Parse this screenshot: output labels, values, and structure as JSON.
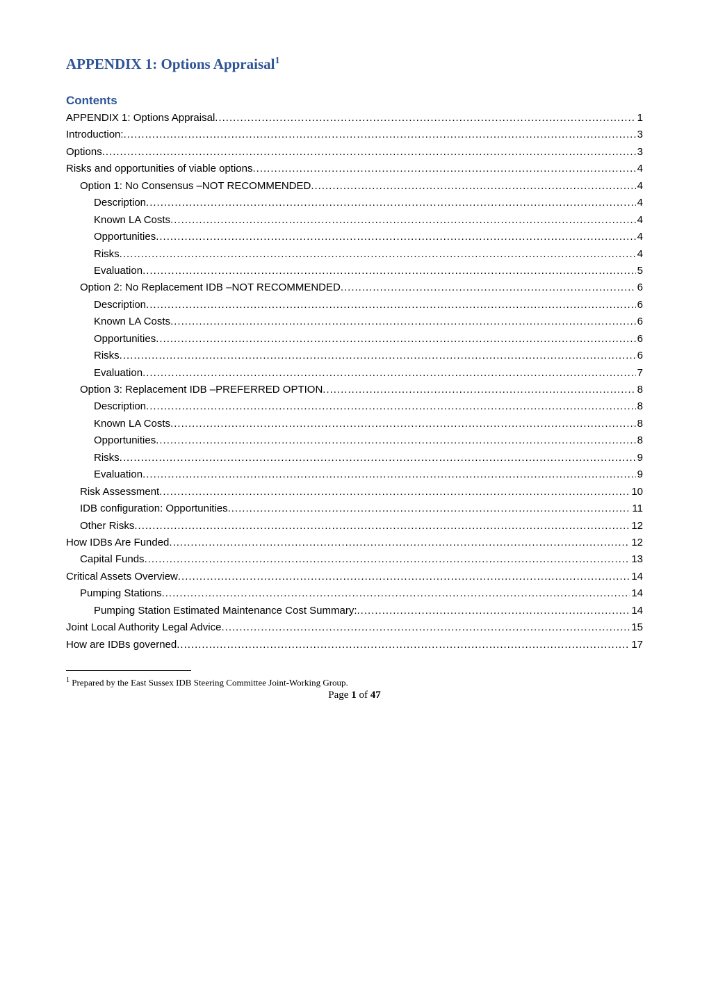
{
  "title": {
    "text": "APPENDIX 1: Options Appraisal",
    "footnote_marker": "1",
    "color": "#2e5496"
  },
  "contents_heading": "Contents",
  "toc": [
    {
      "label": "APPENDIX 1: Options Appraisal",
      "page": "1",
      "level": 0
    },
    {
      "label": "Introduction: ",
      "page": "3",
      "level": 0
    },
    {
      "label": "Options ",
      "page": "3",
      "level": 0
    },
    {
      "label": "Risks and opportunities of viable options",
      "page": "4",
      "level": 0
    },
    {
      "label": "Option 1: No Consensus –NOT RECOMMENDED ",
      "page": "4",
      "level": 1
    },
    {
      "label": "Description",
      "page": "4",
      "level": 2
    },
    {
      "label": "Known LA Costs ",
      "page": "4",
      "level": 2
    },
    {
      "label": "Opportunities ",
      "page": "4",
      "level": 2
    },
    {
      "label": "Risks ",
      "page": "4",
      "level": 2
    },
    {
      "label": "Evaluation ",
      "page": "5",
      "level": 2
    },
    {
      "label": "Option 2: No Replacement IDB –NOT RECOMMENDED ",
      "page": "6",
      "level": 1
    },
    {
      "label": "Description",
      "page": "6",
      "level": 2
    },
    {
      "label": "Known LA Costs ",
      "page": "6",
      "level": 2
    },
    {
      "label": "Opportunities ",
      "page": "6",
      "level": 2
    },
    {
      "label": "Risks ",
      "page": "6",
      "level": 2
    },
    {
      "label": "Evaluation ",
      "page": "7",
      "level": 2
    },
    {
      "label": "Option 3: Replacement IDB –PREFERRED OPTION ",
      "page": "8",
      "level": 1
    },
    {
      "label": "Description",
      "page": "8",
      "level": 2
    },
    {
      "label": "Known LA Costs ",
      "page": "8",
      "level": 2
    },
    {
      "label": "Opportunities ",
      "page": "8",
      "level": 2
    },
    {
      "label": "Risks ",
      "page": "9",
      "level": 2
    },
    {
      "label": "Evaluation ",
      "page": "9",
      "level": 2
    },
    {
      "label": "Risk Assessment",
      "page": "10",
      "level": 1
    },
    {
      "label": "IDB configuration: Opportunities",
      "page": "11",
      "level": 1
    },
    {
      "label": "Other Risks",
      "page": "12",
      "level": 1
    },
    {
      "label": "How IDBs Are Funded ",
      "page": "12",
      "level": 0
    },
    {
      "label": "Capital Funds ",
      "page": "13",
      "level": 1
    },
    {
      "label": "Critical Assets Overview ",
      "page": "14",
      "level": 0
    },
    {
      "label": "Pumping Stations ",
      "page": "14",
      "level": 1
    },
    {
      "label": "Pumping Station Estimated Maintenance Cost Summary: ",
      "page": "14",
      "level": 2
    },
    {
      "label": "Joint Local Authority Legal Advice ",
      "page": "15",
      "level": 0
    },
    {
      "label": "How are IDBs governed ",
      "page": "17",
      "level": 0
    }
  ],
  "footnote": {
    "marker": "1",
    "text": " Prepared by the East Sussex IDB Steering Committee Joint-Working Group."
  },
  "page_footer": {
    "prefix": "Page ",
    "current": "1",
    "sep": " of ",
    "total": "47"
  },
  "colors": {
    "heading": "#2e5496",
    "text": "#000000",
    "background": "#ffffff"
  }
}
